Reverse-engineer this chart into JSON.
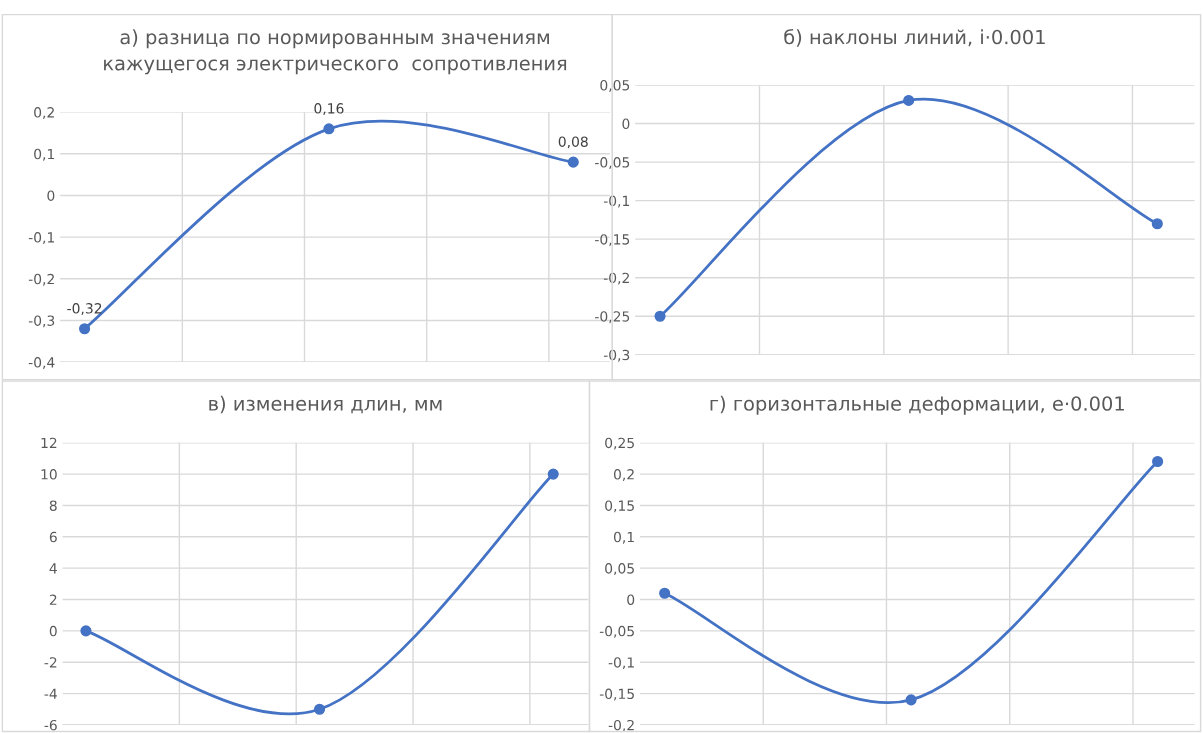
{
  "chart_data": [
    {
      "type": "line",
      "title": "а) разница по нормированным значениям\nкажущегося электрического  сопротивления",
      "categories": [
        null,
        null,
        null
      ],
      "series": [
        {
          "color": "#4472c4",
          "values": [
            -0.32,
            0.16,
            0.08
          ],
          "value_labels": [
            "-0,32",
            "0,16",
            "0,08"
          ]
        }
      ],
      "ylim": [
        -0.4,
        0.2
      ],
      "yticks": [
        {
          "value": -0.4,
          "label": "-0,4"
        },
        {
          "value": -0.3,
          "label": "-0,3"
        },
        {
          "value": -0.2,
          "label": "-0,2"
        },
        {
          "value": -0.1,
          "label": "-0,1"
        },
        0,
        {
          "value": 0.1,
          "label": "0,1"
        },
        {
          "value": 0.2,
          "label": "0,2"
        }
      ],
      "grid": true,
      "marker": "circle",
      "line_style": "solid",
      "legend": false
    },
    {
      "type": "line",
      "title": "б) наклоны линий, i·0.001",
      "categories": [
        null,
        null,
        null
      ],
      "series": [
        {
          "color": "#4472c4",
          "values": [
            -0.25,
            0.03,
            -0.13
          ]
        }
      ],
      "ylim": [
        -0.3,
        0.05
      ],
      "yticks": [
        {
          "value": -0.3,
          "label": "-0,3"
        },
        {
          "value": -0.25,
          "label": "-0,25"
        },
        {
          "value": -0.2,
          "label": "-0,2"
        },
        {
          "value": -0.15,
          "label": "-0,15"
        },
        {
          "value": -0.1,
          "label": "-0,1"
        },
        {
          "value": -0.05,
          "label": "-0,05"
        },
        0,
        {
          "value": 0.05,
          "label": "0,05"
        }
      ],
      "grid": true,
      "marker": "circle",
      "line_style": "solid",
      "legend": false
    },
    {
      "type": "line",
      "title": "в) изменения длин, мм",
      "categories": [
        null,
        null,
        null
      ],
      "series": [
        {
          "color": "#4472c4",
          "values": [
            0,
            -5,
            10
          ]
        }
      ],
      "ylim": [
        -6,
        12
      ],
      "yticks": [
        -6,
        -4,
        -2,
        0,
        2,
        4,
        6,
        8,
        10,
        12
      ],
      "grid": true,
      "marker": "circle",
      "line_style": "solid",
      "legend": false
    },
    {
      "type": "line",
      "title": "г) горизонтальные деформации, е·0.001",
      "categories": [
        null,
        null,
        null
      ],
      "series": [
        {
          "color": "#4472c4",
          "values": [
            0.01,
            -0.16,
            0.22
          ]
        }
      ],
      "ylim": [
        -0.2,
        0.25
      ],
      "yticks": [
        {
          "value": -0.2,
          "label": "-0,2"
        },
        {
          "value": -0.15,
          "label": "-0,15"
        },
        {
          "value": -0.1,
          "label": "-0,1"
        },
        {
          "value": -0.05,
          "label": "-0,05"
        },
        0,
        {
          "value": 0.05,
          "label": "0,05"
        },
        {
          "value": 0.1,
          "label": "0,1"
        },
        {
          "value": 0.15,
          "label": "0,15"
        },
        {
          "value": 0.2,
          "label": "0,2"
        },
        {
          "value": 0.25,
          "label": "0,25"
        }
      ],
      "grid": true,
      "marker": "circle",
      "line_style": "solid",
      "legend": false
    }
  ]
}
